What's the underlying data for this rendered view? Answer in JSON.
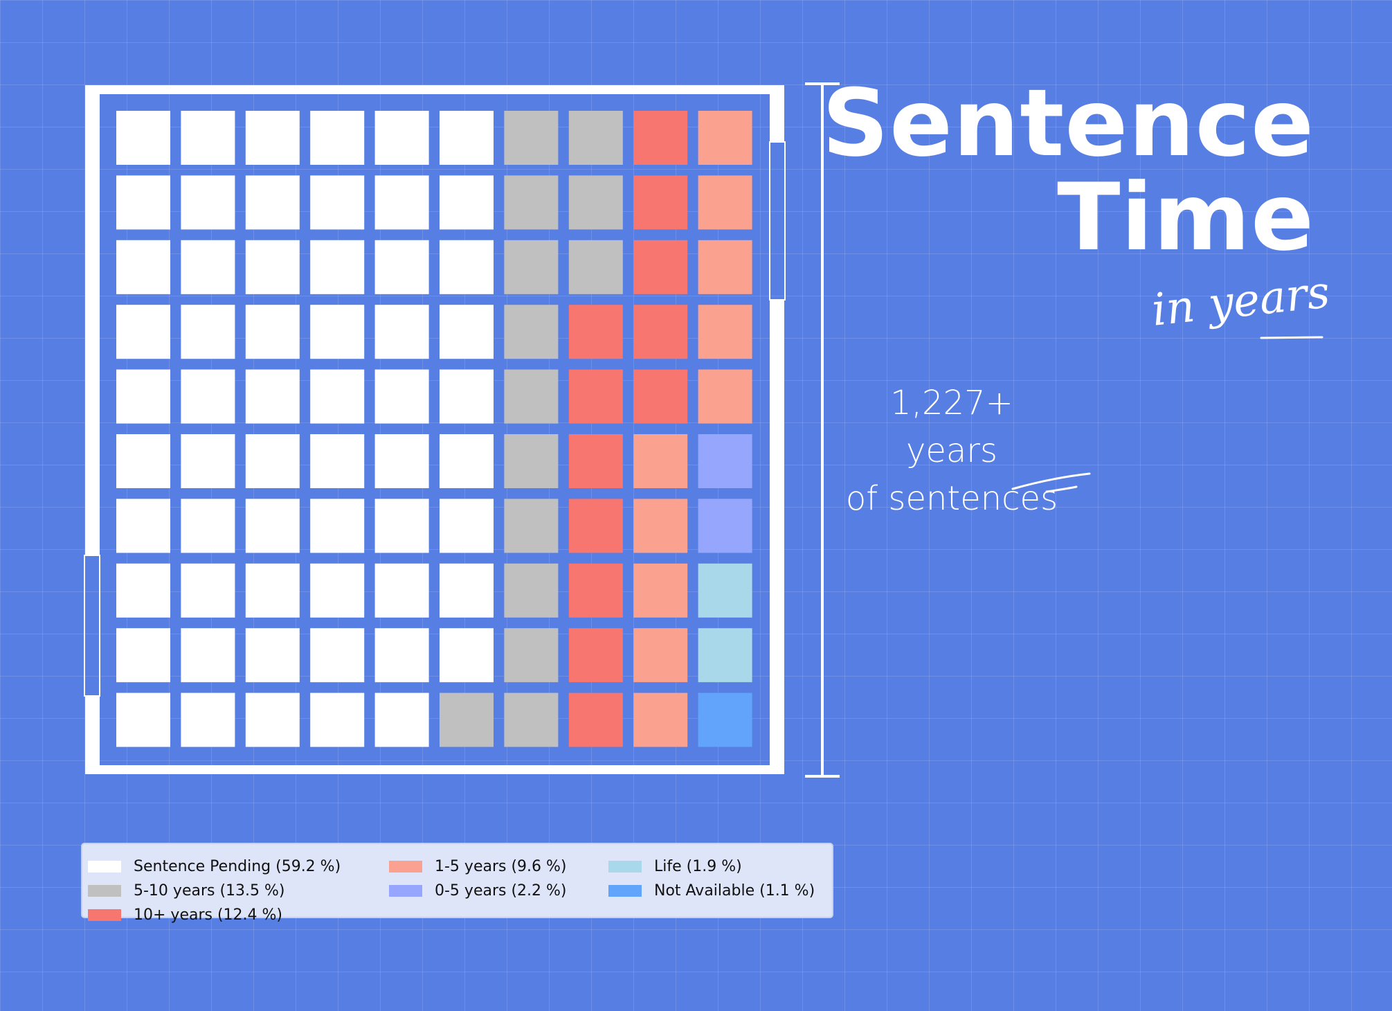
{
  "title": {
    "line1": "Sentence",
    "line2": "Time",
    "subtitle": "in years"
  },
  "annotation": {
    "line1": "1,227+ years",
    "line2": "of sentences"
  },
  "colors": {
    "background": "#577ee3",
    "frame": "#ffffff"
  },
  "chart_data": {
    "type": "waffle",
    "rows": 10,
    "cols": 10,
    "fill_order": "column-major, bottom-right to top-left by category",
    "categories": [
      {
        "name": "Sentence Pending (59.2 %)",
        "value": 59.2,
        "cells": 59,
        "color": "#ffffff"
      },
      {
        "name": "5-10 years (13.5 %)",
        "value": 13.5,
        "cells": 14,
        "color": "#c0c0c0"
      },
      {
        "name": "10+ years (12.4 %)",
        "value": 12.4,
        "cells": 12,
        "color": "#f7766f"
      },
      {
        "name": "1-5 years (9.6 %)",
        "value": 9.6,
        "cells": 10,
        "color": "#fba190"
      },
      {
        "name": "0-5 years (2.2 %)",
        "value": 2.2,
        "cells": 2,
        "color": "#96a6fd"
      },
      {
        "name": "Life (1.9 %)",
        "value": 1.9,
        "cells": 2,
        "color": "#a8d8ea"
      },
      {
        "name": "Not Available (1.1 %)",
        "value": 1.1,
        "cells": 1,
        "color": "#62a4fc"
      }
    ],
    "legend_position": "bottom-left"
  }
}
